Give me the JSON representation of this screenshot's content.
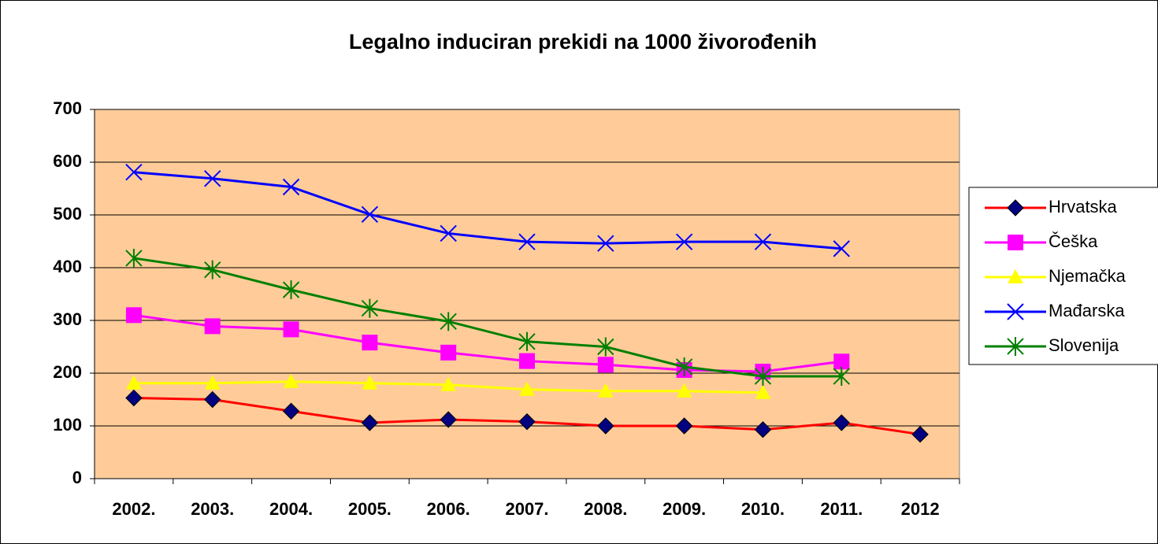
{
  "chart_data": {
    "type": "line",
    "title": "Legalno induciran prekidi na 1000 živorođenih",
    "categories": [
      "2002.",
      "2003.",
      "2004.",
      "2005.",
      "2006.",
      "2007.",
      "2008.",
      "2009.",
      "2010.",
      "2011.",
      "2012"
    ],
    "series": [
      {
        "name": "Hrvatska",
        "color": "#ff0000",
        "marker": "diamond",
        "marker_color": "#000080",
        "values": [
          153,
          150,
          128,
          106,
          112,
          108,
          100,
          100,
          93,
          106,
          84
        ]
      },
      {
        "name": "Češka",
        "color": "#ff00ff",
        "marker": "square",
        "marker_color": "#ff00ff",
        "values": [
          310,
          289,
          283,
          258,
          239,
          223,
          216,
          206,
          203,
          222,
          null
        ]
      },
      {
        "name": "Njemačka",
        "color": "#ffff00",
        "marker": "triangle",
        "marker_color": "#ffff00",
        "values": [
          181,
          181,
          184,
          181,
          178,
          169,
          166,
          166,
          163,
          null,
          null
        ]
      },
      {
        "name": "Mađarska",
        "color": "#0000ff",
        "marker": "x",
        "marker_color": "#0000ff",
        "values": [
          581,
          569,
          553,
          501,
          465,
          449,
          446,
          449,
          449,
          436,
          null
        ]
      },
      {
        "name": "Slovenija",
        "color": "#008000",
        "marker": "star",
        "marker_color": "#008000",
        "values": [
          418,
          396,
          358,
          323,
          298,
          260,
          250,
          212,
          194,
          194,
          null
        ]
      }
    ],
    "ylim": [
      0,
      700
    ],
    "yticks": [
      0,
      100,
      200,
      300,
      400,
      500,
      600,
      700
    ],
    "grid": true,
    "plot_background": "#ffcc99",
    "legend": "right"
  }
}
